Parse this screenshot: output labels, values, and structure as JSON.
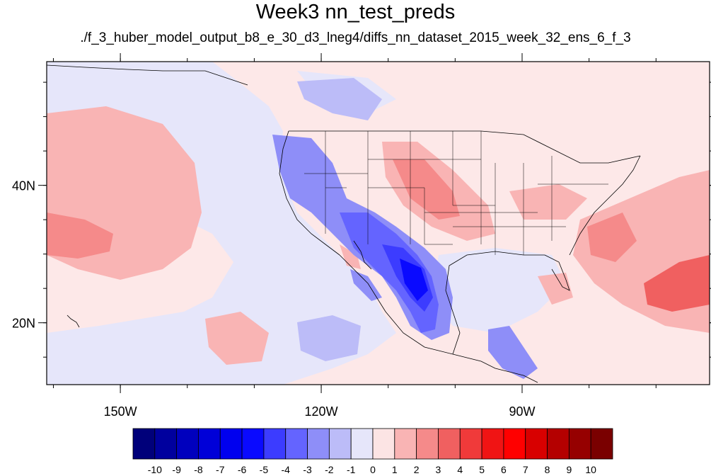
{
  "title": "Week3 nn_test_preds",
  "subtitle": "./f_3_huber_model_output_b8_e_30_d3_lneg4/diffs_nn_dataset_2015_week_32_ens_6_f_3",
  "map": {
    "lon_range": [
      -161,
      -62
    ],
    "lat_range": [
      11,
      58
    ],
    "x_ticks": [
      {
        "value": -150,
        "label": "150W"
      },
      {
        "value": -120,
        "label": "120W"
      },
      {
        "value": -90,
        "label": "90W"
      }
    ],
    "y_ticks": [
      {
        "value": 40,
        "label": "40N"
      },
      {
        "value": 20,
        "label": "20N"
      }
    ],
    "minor_lon_step": 10,
    "minor_lat_step": 5
  },
  "colorbar": {
    "labels": [
      "-10",
      "-9",
      "-8",
      "-7",
      "-6",
      "-5",
      "-4",
      "-3",
      "-2",
      "-1",
      "0",
      "1",
      "2",
      "3",
      "4",
      "5",
      "6",
      "7",
      "8",
      "9",
      "10"
    ],
    "colors": [
      "#00007a",
      "#00009e",
      "#0000be",
      "#0000d8",
      "#0000ef",
      "#0a0aff",
      "#3c3cff",
      "#6464ff",
      "#8e8ef8",
      "#bcbcf8",
      "#e6e6fa",
      "#fce4e4",
      "#f9b4b4",
      "#f58a8a",
      "#f06060",
      "#f03a3a",
      "#f01414",
      "#ff0000",
      "#d80000",
      "#b40000",
      "#960000",
      "#7a0000"
    ]
  },
  "colors": {
    "background_field": "#fde8e8",
    "light_blue": "#e6e6fa",
    "coastline": "#000000"
  }
}
